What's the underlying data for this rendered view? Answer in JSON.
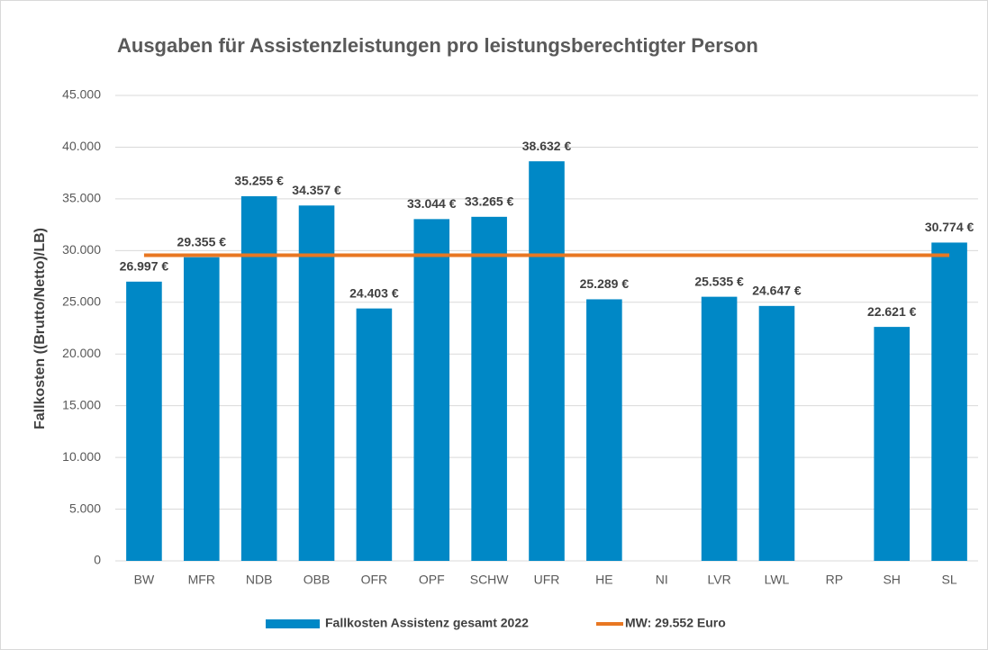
{
  "chart_data": {
    "type": "bar",
    "title": "Ausgaben für Assistenzleistungen pro leistungsberechtigter Person",
    "y_label": "Fallkosten ((Brutto/Netto)/LB)",
    "categories": [
      "BW",
      "MFR",
      "NDB",
      "OBB",
      "OFR",
      "OPF",
      "SCHW",
      "UFR",
      "HE",
      "NI",
      "LVR",
      "LWL",
      "RP",
      "SH",
      "SL"
    ],
    "series": [
      {
        "name": "Fallkosten Assistenz gesamt 2022",
        "color": "#0088c6",
        "values": [
          26997,
          29355,
          35255,
          34357,
          24403,
          33044,
          33265,
          38632,
          25289,
          null,
          25535,
          24647,
          null,
          22621,
          30774
        ],
        "value_labels": [
          "26.997 €",
          "29.355 €",
          "35.255 €",
          "34.357 €",
          "24.403 €",
          "33.044 €",
          "33.265 €",
          "38.632 €",
          "25.289 €",
          null,
          "25.535 €",
          "24.647 €",
          null,
          "22.621 €",
          "30.774 €"
        ]
      }
    ],
    "mean": {
      "name": "MW: 29.552 Euro",
      "value": 29552,
      "color": "#e87722"
    },
    "ylim": [
      0,
      45000
    ],
    "yticks": [
      0,
      {
        "value": 5000,
        "label": "5.000"
      },
      {
        "value": 10000,
        "label": "10.000"
      },
      {
        "value": 15000,
        "label": "15.000"
      },
      {
        "value": 20000,
        "label": "20.000"
      },
      {
        "value": 25000,
        "label": "25.000"
      },
      {
        "value": 30000,
        "label": "30.000"
      },
      {
        "value": 35000,
        "label": "35.000"
      },
      {
        "value": 40000,
        "label": "40.000"
      },
      {
        "value": 45000,
        "label": "45.000"
      }
    ],
    "grid": true
  }
}
